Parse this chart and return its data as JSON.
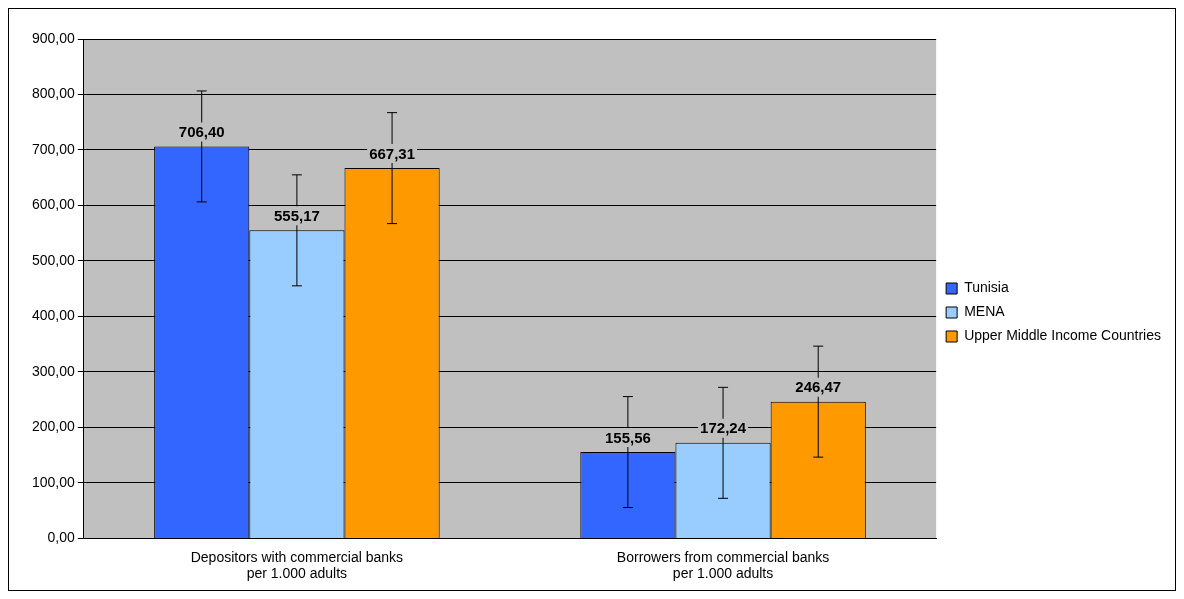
{
  "chart_data": {
    "type": "bar",
    "categories": [
      "Depositors with commercial banks per 1.000 adults",
      "Borrowers from commercial banks per 1.000 adults"
    ],
    "series": [
      {
        "name": "Tunisia",
        "color": "#3366ff",
        "values": [
          706.4,
          155.56
        ],
        "value_labels": [
          "706,40",
          "155,56"
        ],
        "errors": [
          100,
          100
        ]
      },
      {
        "name": "MENA",
        "color": "#99ccff",
        "values": [
          555.17,
          172.24
        ],
        "value_labels": [
          "555,17",
          "172,24"
        ],
        "errors": [
          100,
          100
        ]
      },
      {
        "name": "Upper Middle Income Countries",
        "color": "#ff9900",
        "values": [
          667.31,
          246.47
        ],
        "value_labels": [
          "667,31",
          "246,47"
        ],
        "errors": [
          100,
          100
        ]
      }
    ],
    "ylim": [
      0,
      900
    ],
    "yticks": [
      {
        "value": 0,
        "label": "0,00"
      },
      {
        "value": 100,
        "label": "100,00"
      },
      {
        "value": 200,
        "label": "200,00"
      },
      {
        "value": 300,
        "label": "300,00"
      },
      {
        "value": 400,
        "label": "400,00"
      },
      {
        "value": 500,
        "label": "500,00"
      },
      {
        "value": 600,
        "label": "600,00"
      },
      {
        "value": 700,
        "label": "700,00"
      },
      {
        "value": 800,
        "label": "800,00"
      },
      {
        "value": 900,
        "label": "900,00"
      }
    ],
    "grid": "y",
    "legend": "right"
  }
}
